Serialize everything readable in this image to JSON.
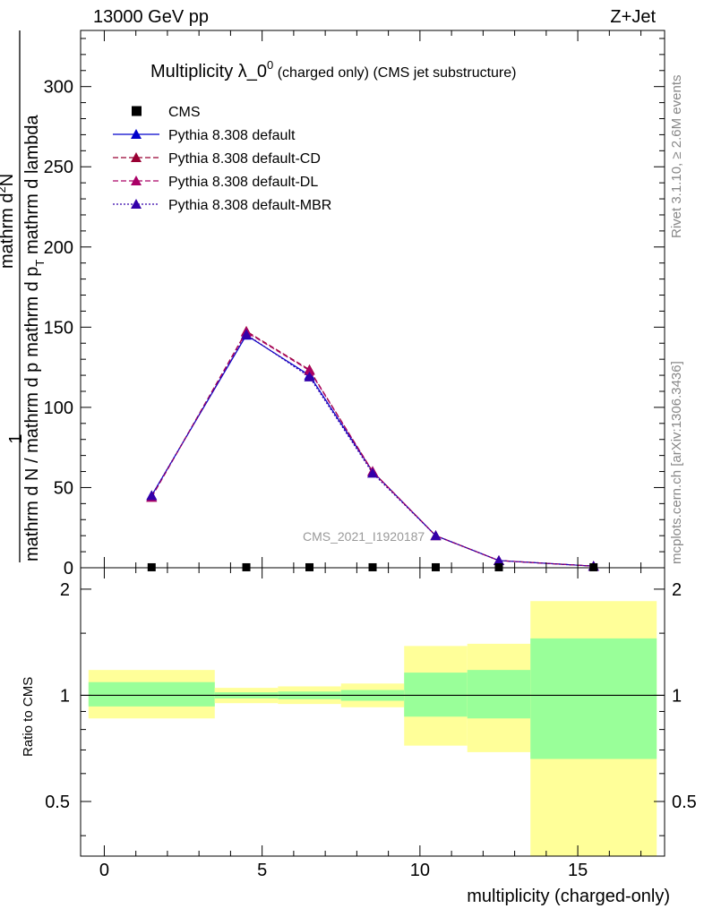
{
  "header": {
    "left": "13000 GeV pp",
    "right": "Z+Jet"
  },
  "side_labels": {
    "rivet": "Rivet 3.1.10, ≥ 2.6M events",
    "mcplots": "mcplots.cern.ch [arXiv:1306.3436]"
  },
  "chart_data": [
    {
      "type": "line",
      "title": "Multiplicity λ_0",
      "title_sup": "0",
      "title_suffix": " (charged only) (CMS jet substructure)",
      "watermark": "CMS_2021_I1920187",
      "ylabel_parts": {
        "one": "1",
        "den_left": "mathrm d N / mathrm d p",
        "den_right": "mathrm d p",
        "T": "T",
        "den_tail": " mathrm d lambda",
        "num": "mathrm d",
        "num_sup": "2",
        "num_tail": "N"
      },
      "xlim": [
        -0.75,
        17.75
      ],
      "ylim": [
        0,
        335
      ],
      "yticks": [
        0,
        50,
        100,
        150,
        200,
        250,
        300
      ],
      "x": [
        1.5,
        4.5,
        6.5,
        8.5,
        10.5,
        12.5,
        15.5
      ],
      "series": [
        {
          "name": "CMS",
          "style": "marker",
          "color": "#000000",
          "values": [
            0.3,
            0.3,
            0.3,
            0.3,
            0.3,
            0.3,
            0.3
          ]
        },
        {
          "name": "Pythia 8.308 default",
          "style": "solid",
          "color": "#0000cc",
          "values": [
            45,
            145,
            120,
            60,
            20,
            4.5,
            1
          ]
        },
        {
          "name": "Pythia 8.308 default-CD",
          "style": "dashed",
          "color": "#990033",
          "values": [
            44,
            147.5,
            123.5,
            60,
            20,
            4.5,
            1
          ]
        },
        {
          "name": "Pythia 8.308 default-DL",
          "style": "dashed",
          "color": "#aa0066",
          "values": [
            44,
            147,
            123,
            60,
            20,
            4.5,
            1
          ]
        },
        {
          "name": "Pythia 8.308 default-MBR",
          "style": "dotted",
          "color": "#3300aa",
          "values": [
            45,
            145.5,
            119,
            59,
            20,
            4.5,
            1
          ]
        }
      ],
      "legend_placement": "top-left"
    },
    {
      "type": "area",
      "ylabel": "Ratio to CMS",
      "xlabel": "multiplicity (charged-only)",
      "xlim": [
        -0.75,
        17.75
      ],
      "ylim": [
        0.35,
        2.3
      ],
      "xticks": [
        0,
        5,
        10,
        15
      ],
      "yticks": [
        0.5,
        1,
        2
      ],
      "ytick_labels": [
        "0.5",
        "1",
        "2"
      ],
      "bins": [
        {
          "lo": -0.5,
          "hi": 3.5,
          "green": [
            0.93,
            1.09
          ],
          "yellow": [
            0.86,
            1.18
          ]
        },
        {
          "lo": 3.5,
          "hi": 5.5,
          "green": [
            0.98,
            1.02
          ],
          "yellow": [
            0.95,
            1.05
          ]
        },
        {
          "lo": 5.5,
          "hi": 7.5,
          "green": [
            0.975,
            1.025
          ],
          "yellow": [
            0.945,
            1.06
          ]
        },
        {
          "lo": 7.5,
          "hi": 9.5,
          "green": [
            0.965,
            1.035
          ],
          "yellow": [
            0.925,
            1.08
          ]
        },
        {
          "lo": 9.5,
          "hi": 11.5,
          "green": [
            0.87,
            1.16
          ],
          "yellow": [
            0.72,
            1.38
          ]
        },
        {
          "lo": 11.5,
          "hi": 13.5,
          "green": [
            0.86,
            1.18
          ],
          "yellow": [
            0.69,
            1.4
          ]
        },
        {
          "lo": 13.5,
          "hi": 17.5,
          "green": [
            0.66,
            1.45
          ],
          "yellow": [
            0.35,
            1.85
          ]
        }
      ],
      "colors": {
        "green": "#99ff99",
        "yellow": "#ffff99"
      }
    }
  ]
}
